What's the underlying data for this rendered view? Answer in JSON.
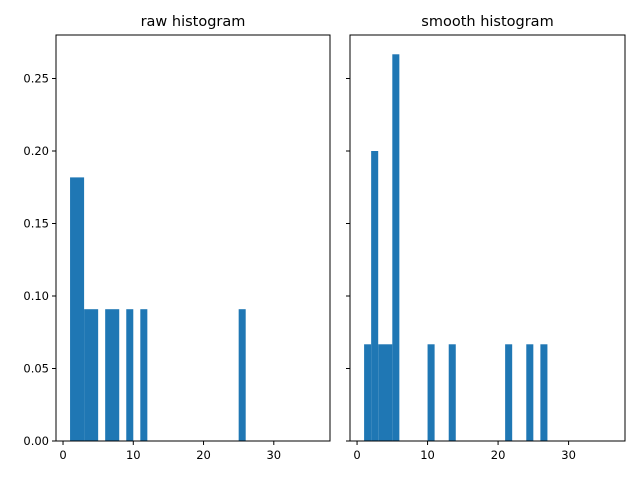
{
  "chart_data": [
    {
      "type": "bar",
      "title": "raw histogram",
      "xlabel": "",
      "ylabel": "",
      "xlim": [
        -1,
        38
      ],
      "ylim": [
        0,
        0.28
      ],
      "xticks": [
        0,
        10,
        20,
        30
      ],
      "xtick_labels": [
        "0",
        "10",
        "20",
        "30"
      ],
      "yticks": [
        0.0,
        0.05,
        0.1,
        0.15,
        0.2,
        0.25
      ],
      "ytick_labels": [
        "0.00",
        "0.05",
        "0.10",
        "0.15",
        "0.20",
        "0.25"
      ],
      "grid": false,
      "color": "#1f77b4",
      "bins": [
        {
          "x0": 1,
          "x1": 3,
          "value": 0.1818
        },
        {
          "x0": 3,
          "x1": 5,
          "value": 0.0909
        },
        {
          "x0": 6,
          "x1": 8,
          "value": 0.0909
        },
        {
          "x0": 9,
          "x1": 10,
          "value": 0.0909
        },
        {
          "x0": 11,
          "x1": 12,
          "value": 0.0909
        },
        {
          "x0": 25,
          "x1": 26,
          "value": 0.0909
        }
      ]
    },
    {
      "type": "bar",
      "title": "smooth histogram",
      "xlabel": "",
      "ylabel": "",
      "xlim": [
        -1,
        38
      ],
      "ylim": [
        0,
        0.28
      ],
      "xticks": [
        0,
        10,
        20,
        30
      ],
      "xtick_labels": [
        "0",
        "10",
        "20",
        "30"
      ],
      "yticks": [
        0.0,
        0.05,
        0.1,
        0.15,
        0.2,
        0.25
      ],
      "ytick_labels": [
        "",
        "",
        "",
        "",
        "",
        ""
      ],
      "shared_y": true,
      "grid": false,
      "color": "#1f77b4",
      "bins": [
        {
          "x0": 1,
          "x1": 2,
          "value": 0.0667
        },
        {
          "x0": 2,
          "x1": 3,
          "value": 0.2
        },
        {
          "x0": 3,
          "x1": 5,
          "value": 0.0667
        },
        {
          "x0": 5,
          "x1": 6,
          "value": 0.2667
        },
        {
          "x0": 10,
          "x1": 11,
          "value": 0.0667
        },
        {
          "x0": 13,
          "x1": 14,
          "value": 0.0667
        },
        {
          "x0": 21,
          "x1": 22,
          "value": 0.0667
        },
        {
          "x0": 24,
          "x1": 25,
          "value": 0.0667
        },
        {
          "x0": 26,
          "x1": 27,
          "value": 0.0667
        }
      ]
    }
  ]
}
